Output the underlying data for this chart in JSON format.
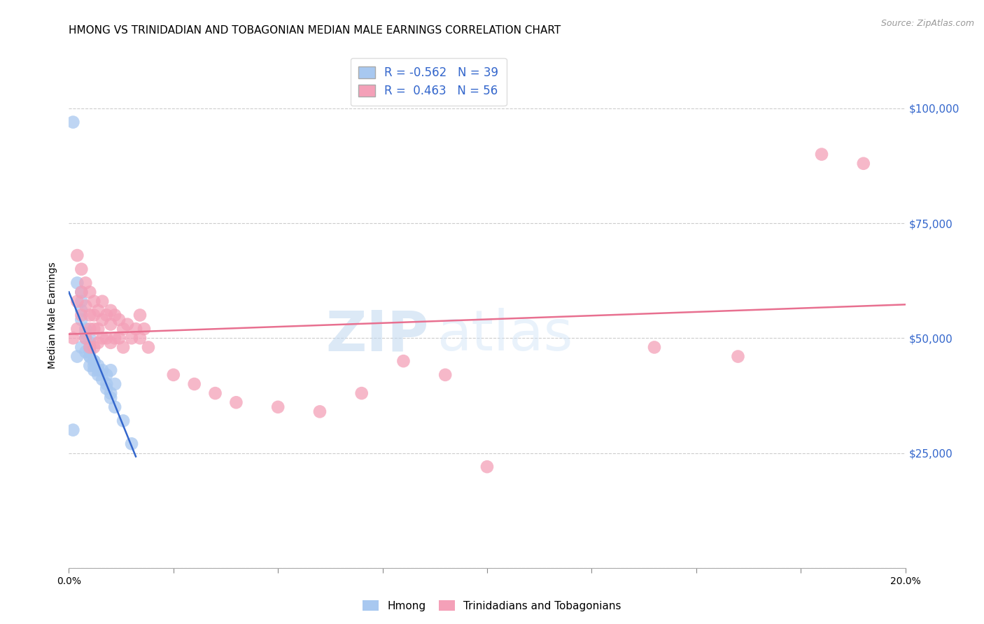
{
  "title": "HMONG VS TRINIDADIAN AND TOBAGONIAN MEDIAN MALE EARNINGS CORRELATION CHART",
  "source": "Source: ZipAtlas.com",
  "ylabel": "Median Male Earnings",
  "watermark_zip": "ZIP",
  "watermark_atlas": "atlas",
  "legend_blue_r": "-0.562",
  "legend_blue_n": "39",
  "legend_pink_r": "0.463",
  "legend_pink_n": "56",
  "xlim": [
    0.0,
    0.2
  ],
  "ylim": [
    0,
    110000
  ],
  "yticks": [
    0,
    25000,
    50000,
    75000,
    100000
  ],
  "ytick_labels": [
    "",
    "$25,000",
    "$50,000",
    "$75,000",
    "$100,000"
  ],
  "xtick_positions": [
    0.0,
    0.025,
    0.05,
    0.075,
    0.1,
    0.125,
    0.15,
    0.175,
    0.2
  ],
  "xtick_labels_show": {
    "0.0": "0.0%",
    "0.20": "20.0%"
  },
  "blue_color": "#A8C8F0",
  "pink_color": "#F4A0B8",
  "blue_line_color": "#3366CC",
  "pink_line_color": "#E87090",
  "grid_color": "#CCCCCC",
  "right_label_color": "#3366CC",
  "hmong_x": [
    0.001,
    0.002,
    0.003,
    0.003,
    0.003,
    0.003,
    0.004,
    0.004,
    0.004,
    0.005,
    0.005,
    0.005,
    0.005,
    0.005,
    0.006,
    0.006,
    0.006,
    0.007,
    0.007,
    0.008,
    0.009,
    0.009,
    0.01,
    0.01,
    0.011,
    0.013,
    0.001,
    0.002,
    0.003,
    0.004,
    0.005,
    0.005,
    0.006,
    0.007,
    0.008,
    0.009,
    0.01,
    0.011,
    0.015
  ],
  "hmong_y": [
    97000,
    62000,
    60000,
    58000,
    56000,
    54000,
    52000,
    51000,
    50000,
    50000,
    49000,
    48000,
    47000,
    46000,
    45000,
    44000,
    43000,
    43000,
    42000,
    41000,
    40000,
    39000,
    38000,
    37000,
    35000,
    32000,
    30000,
    46000,
    48000,
    47000,
    46000,
    44000,
    45000,
    44000,
    43000,
    42000,
    43000,
    40000,
    27000
  ],
  "trin_x": [
    0.001,
    0.002,
    0.002,
    0.002,
    0.003,
    0.003,
    0.003,
    0.004,
    0.004,
    0.004,
    0.005,
    0.005,
    0.005,
    0.005,
    0.006,
    0.006,
    0.006,
    0.006,
    0.007,
    0.007,
    0.007,
    0.008,
    0.008,
    0.008,
    0.009,
    0.009,
    0.01,
    0.01,
    0.01,
    0.011,
    0.011,
    0.012,
    0.012,
    0.013,
    0.013,
    0.014,
    0.015,
    0.016,
    0.017,
    0.017,
    0.018,
    0.019,
    0.025,
    0.03,
    0.035,
    0.04,
    0.05,
    0.06,
    0.07,
    0.08,
    0.09,
    0.1,
    0.14,
    0.16,
    0.18,
    0.19
  ],
  "trin_y": [
    50000,
    68000,
    58000,
    52000,
    65000,
    60000,
    55000,
    62000,
    57000,
    50000,
    60000,
    55000,
    52000,
    48000,
    58000,
    55000,
    52000,
    48000,
    56000,
    52000,
    49000,
    58000,
    54000,
    50000,
    55000,
    50000,
    56000,
    53000,
    49000,
    55000,
    50000,
    54000,
    50000,
    52000,
    48000,
    53000,
    50000,
    52000,
    55000,
    50000,
    52000,
    48000,
    42000,
    40000,
    38000,
    36000,
    35000,
    34000,
    38000,
    45000,
    42000,
    22000,
    48000,
    46000,
    90000,
    88000
  ],
  "legend_label_blue": "Hmong",
  "legend_label_pink": "Trinidadians and Tobagonians",
  "title_fontsize": 11,
  "axis_label_fontsize": 10,
  "tick_fontsize": 10
}
